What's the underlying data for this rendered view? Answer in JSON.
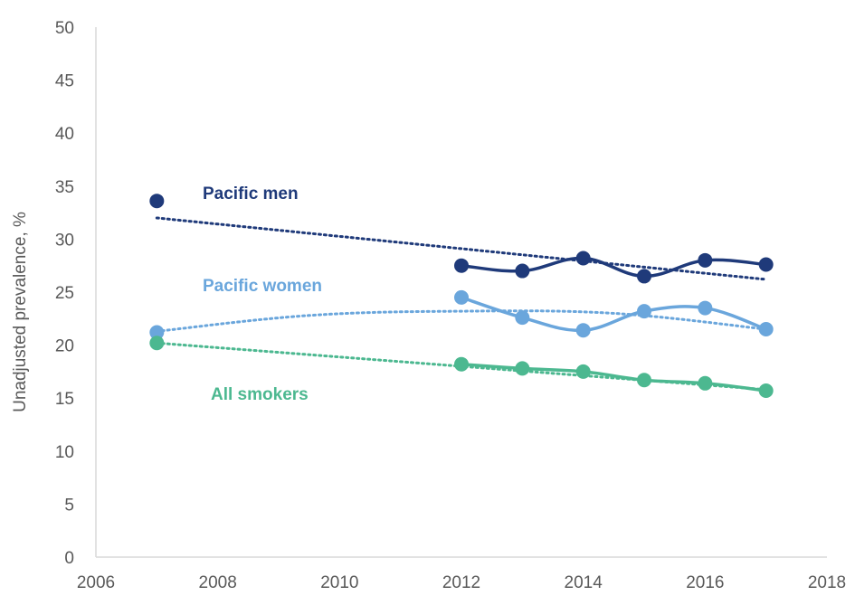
{
  "chart_data": {
    "type": "line",
    "title": "",
    "xlabel": "",
    "ylabel": "Unadjusted prevalence, %",
    "xlim": [
      2006,
      2018
    ],
    "ylim": [
      0,
      50
    ],
    "xticks": [
      "2006",
      "2008",
      "2010",
      "2012",
      "2014",
      "2016",
      "2018"
    ],
    "yticks": [
      "0",
      "5",
      "10",
      "15",
      "20",
      "25",
      "30",
      "35",
      "40",
      "45",
      "50"
    ],
    "grid": false,
    "legend": "inline labels",
    "series": [
      {
        "name": "Pacific men",
        "color": "#1f3a7a",
        "x": [
          2007,
          2012,
          2013,
          2014,
          2015,
          2016,
          2017
        ],
        "y": [
          33.6,
          27.5,
          27.0,
          28.2,
          26.5,
          28.0,
          27.6
        ],
        "trend": "linear",
        "trend_y": [
          32.0,
          26.2
        ]
      },
      {
        "name": "Pacific women",
        "color": "#6aa6dc",
        "x": [
          2007,
          2012,
          2013,
          2014,
          2015,
          2016,
          2017
        ],
        "y": [
          21.2,
          24.5,
          22.6,
          21.4,
          23.2,
          23.5,
          21.5
        ],
        "trend": "polynomial",
        "trend_y": [
          21.3,
          22.8,
          23.2,
          23.0,
          21.5
        ]
      },
      {
        "name": "All smokers",
        "color": "#4cb890",
        "x": [
          2007,
          2012,
          2013,
          2014,
          2015,
          2016,
          2017
        ],
        "y": [
          20.2,
          18.2,
          17.8,
          17.5,
          16.7,
          16.4,
          15.7
        ],
        "trend": "linear",
        "trend_y": [
          20.2,
          15.8
        ]
      }
    ]
  }
}
